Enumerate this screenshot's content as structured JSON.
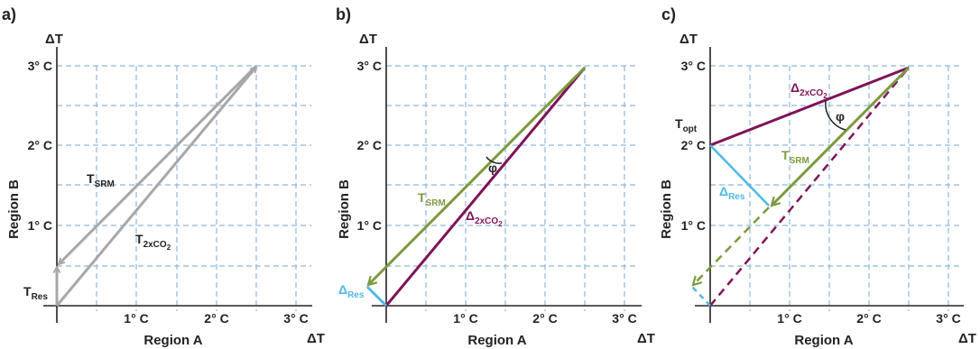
{
  "colors": {
    "axis": "#222222",
    "grid": "#8fb8dc",
    "gray_arrow": "#a7a7a7",
    "srm": "#7b9a3f",
    "co2": "#7d1456",
    "residual": "#4fb8e6"
  },
  "panels": [
    {
      "id": "a",
      "panel_label": "a)",
      "y_axis_top": "ΔT",
      "x_axis_end": "ΔT",
      "y_axis_title": "Region B",
      "x_axis_title": "Region A",
      "x_ticks": [
        "1° C",
        "2° C",
        "3° C"
      ],
      "y_ticks": [
        "1° C",
        "2° C",
        "3° C"
      ],
      "labels": {
        "srm_main": "T",
        "srm_sub": "SRM",
        "co2_main": "T",
        "co2_sub": "2xCO",
        "co2_subsub": "2",
        "res_main": "T",
        "res_sub": "Res"
      }
    },
    {
      "id": "b",
      "panel_label": "b)",
      "y_axis_top": "ΔT",
      "x_axis_end": "ΔT",
      "y_axis_title": "Region B",
      "x_axis_title": "Region A",
      "x_ticks": [
        "1° C",
        "2° C",
        "3° C"
      ],
      "y_ticks": [
        "1° C",
        "2° C",
        "3° C"
      ],
      "labels": {
        "srm_main": "T",
        "srm_sub": "SRM",
        "co2_main": "Δ",
        "co2_sub": "2xCO",
        "co2_subsub": "2",
        "res_main": "Δ",
        "res_sub": "Res",
        "angle": "φ"
      }
    },
    {
      "id": "c",
      "panel_label": "c)",
      "y_axis_top": "ΔT",
      "x_axis_end": "ΔT",
      "y_axis_title": "Region B",
      "x_axis_title": "Region A",
      "x_ticks": [
        "1° C",
        "2° C",
        "3° C"
      ],
      "y_ticks": [
        "1° C",
        "2° C",
        "3° C"
      ],
      "labels": {
        "srm_main": "T",
        "srm_sub": "SRM",
        "co2_main": "Δ",
        "co2_sub": "2xCO",
        "co2_subsub": "2",
        "res_main": "Δ",
        "res_sub": "Res",
        "opt_main": "T",
        "opt_sub": "opt",
        "angle": "φ"
      }
    }
  ],
  "vectors": {
    "a": {
      "co2": {
        "from": [
          0,
          0
        ],
        "to": [
          2.5,
          3.0
        ]
      },
      "srm": {
        "from": [
          2.5,
          3.0
        ],
        "to": [
          0,
          0.5
        ]
      },
      "res": {
        "from": [
          0,
          0
        ],
        "to": [
          0,
          0.5
        ]
      }
    },
    "b": {
      "co2": {
        "from": [
          0,
          0
        ],
        "to": [
          2.5,
          3.0
        ]
      },
      "srm": {
        "from": [
          2.5,
          3.0
        ],
        "to": [
          -0.25,
          0.25
        ]
      },
      "res": {
        "from": [
          0,
          0
        ],
        "to": [
          -0.25,
          0.25
        ]
      }
    },
    "c": {
      "co2": {
        "from": [
          0,
          2.0
        ],
        "to": [
          2.5,
          3.0
        ]
      },
      "srm": {
        "from": [
          2.5,
          3.0
        ],
        "to": [
          0.75,
          1.25
        ]
      },
      "res": {
        "from": [
          0,
          2.0
        ],
        "to": [
          0.75,
          1.25
        ]
      },
      "co2_dashed": {
        "from": [
          0,
          0
        ],
        "to": [
          2.5,
          3.0
        ]
      },
      "srm_dashed": {
        "from": [
          0.75,
          1.25
        ],
        "to": [
          -0.25,
          0.25
        ]
      },
      "res_dashed": {
        "from": [
          0,
          0
        ],
        "to": [
          -0.25,
          0.25
        ]
      }
    }
  }
}
